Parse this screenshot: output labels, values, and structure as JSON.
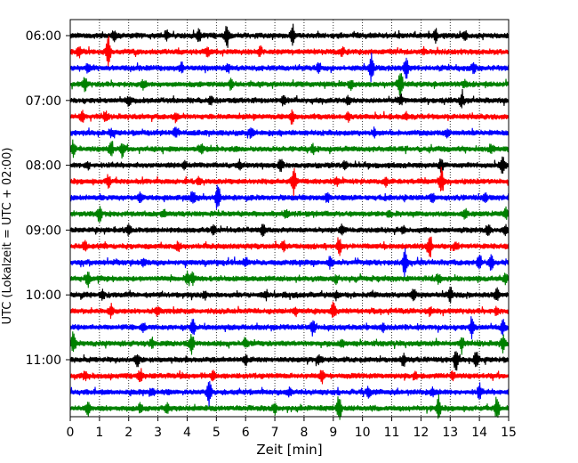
{
  "chart_data": {
    "type": "line",
    "title": "",
    "xlabel": "Zeit  [min]",
    "ylabel": "UTC (Lokalzeit = UTC + 02:00)",
    "xlim": [
      0,
      15
    ],
    "x_ticks": [
      "0",
      "1",
      "2",
      "3",
      "4",
      "5",
      "6",
      "7",
      "8",
      "9",
      "10",
      "11",
      "12",
      "13",
      "14",
      "15"
    ],
    "y_ticks": [
      "06:00",
      "07:00",
      "08:00",
      "09:00",
      "10:00",
      "11:00"
    ],
    "grid": "vertical dotted at each minute",
    "line_interval_minutes": 15,
    "first_line": "06:00",
    "trace_count": 24,
    "colors": [
      "#000000",
      "#ff0000",
      "#0000ff",
      "#008000"
    ],
    "events": [
      [
        [
          5.35,
          1.0
        ],
        [
          7.6,
          0.7
        ],
        [
          3.3,
          0.3
        ],
        [
          12.5,
          0.45
        ],
        [
          4.4,
          0.35
        ],
        [
          13.5,
          0.35
        ],
        [
          1.5,
          0.3
        ]
      ],
      [
        [
          1.3,
          1.0
        ],
        [
          0.3,
          0.35
        ],
        [
          6.5,
          0.3
        ],
        [
          12.1,
          0.2
        ],
        [
          4.7,
          0.25
        ],
        [
          9.3,
          0.25
        ]
      ],
      [
        [
          10.3,
          1.0
        ],
        [
          11.5,
          0.75
        ],
        [
          13.8,
          0.3
        ],
        [
          3.8,
          0.3
        ],
        [
          0.6,
          0.35
        ],
        [
          8.5,
          0.3
        ],
        [
          5.4,
          0.25
        ]
      ],
      [
        [
          11.3,
          1.0
        ],
        [
          0.5,
          0.45
        ],
        [
          5.5,
          0.35
        ],
        [
          9.6,
          0.3
        ],
        [
          13.5,
          0.2
        ],
        [
          2.5,
          0.25
        ]
      ],
      [
        [
          13.4,
          0.45
        ],
        [
          11.3,
          0.35
        ],
        [
          7.3,
          0.3
        ],
        [
          2.0,
          0.3
        ],
        [
          4.8,
          0.25
        ],
        [
          9.5,
          0.25
        ]
      ],
      [
        [
          0.4,
          0.45
        ],
        [
          1.2,
          0.3
        ],
        [
          7.6,
          0.45
        ],
        [
          3.6,
          0.25
        ],
        [
          9.5,
          0.3
        ],
        [
          11.5,
          0.25
        ]
      ],
      [
        [
          3.6,
          0.3
        ],
        [
          6.2,
          0.25
        ],
        [
          10.4,
          0.25
        ],
        [
          12.9,
          0.25
        ],
        [
          1.4,
          0.25
        ]
      ],
      [
        [
          0.1,
          0.5
        ],
        [
          1.4,
          0.6
        ],
        [
          1.8,
          0.45
        ],
        [
          4.5,
          0.25
        ],
        [
          8.3,
          0.25
        ],
        [
          14.4,
          0.3
        ]
      ],
      [
        [
          14.8,
          0.75
        ],
        [
          7.2,
          0.4
        ],
        [
          5.8,
          0.25
        ],
        [
          12.7,
          0.4
        ],
        [
          3.9,
          0.3
        ],
        [
          9.4,
          0.3
        ],
        [
          0.6,
          0.25
        ]
      ],
      [
        [
          7.65,
          0.95
        ],
        [
          1.3,
          0.45
        ],
        [
          12.7,
          0.9
        ],
        [
          10.8,
          0.35
        ],
        [
          4.4,
          0.25
        ],
        [
          9.1,
          0.25
        ]
      ],
      [
        [
          5.05,
          1.0
        ],
        [
          4.2,
          0.55
        ],
        [
          8.8,
          0.3
        ],
        [
          12.4,
          0.3
        ],
        [
          2.4,
          0.25
        ],
        [
          14.2,
          0.3
        ]
      ],
      [
        [
          1.0,
          0.55
        ],
        [
          3.2,
          0.25
        ],
        [
          7.4,
          0.25
        ],
        [
          10.9,
          0.25
        ],
        [
          13.5,
          0.35
        ],
        [
          14.9,
          0.3
        ]
      ],
      [
        [
          6.6,
          0.5
        ],
        [
          14.9,
          0.4
        ],
        [
          14.3,
          0.35
        ],
        [
          2.0,
          0.3
        ],
        [
          9.3,
          0.3
        ],
        [
          11.4,
          0.25
        ],
        [
          4.9,
          0.25
        ]
      ],
      [
        [
          12.3,
          0.85
        ],
        [
          9.2,
          0.6
        ],
        [
          0.5,
          0.3
        ],
        [
          3.7,
          0.25
        ],
        [
          7.3,
          0.25
        ],
        [
          13.2,
          0.25
        ]
      ],
      [
        [
          11.45,
          1.0
        ],
        [
          14.0,
          0.5
        ],
        [
          14.4,
          0.45
        ],
        [
          8.9,
          0.35
        ],
        [
          2.5,
          0.25
        ],
        [
          6.0,
          0.25
        ]
      ],
      [
        [
          0.6,
          0.5
        ],
        [
          4.0,
          0.45
        ],
        [
          4.2,
          0.4
        ],
        [
          12.6,
          0.3
        ],
        [
          9.1,
          0.25
        ],
        [
          14.9,
          0.25
        ]
      ],
      [
        [
          11.75,
          0.45
        ],
        [
          13.0,
          0.5
        ],
        [
          1.1,
          0.3
        ],
        [
          6.7,
          0.25
        ],
        [
          14.6,
          0.4
        ],
        [
          4.6,
          0.25
        ],
        [
          9.1,
          0.25
        ]
      ],
      [
        [
          9.0,
          0.6
        ],
        [
          1.4,
          0.4
        ],
        [
          3.0,
          0.3
        ],
        [
          7.7,
          0.3
        ],
        [
          12.3,
          0.25
        ],
        [
          14.6,
          0.25
        ]
      ],
      [
        [
          4.2,
          0.5
        ],
        [
          8.3,
          0.6
        ],
        [
          13.75,
          0.7
        ],
        [
          14.8,
          0.45
        ],
        [
          2.5,
          0.25
        ],
        [
          10.7,
          0.25
        ]
      ],
      [
        [
          0.1,
          0.75
        ],
        [
          4.15,
          0.7
        ],
        [
          6.0,
          0.3
        ],
        [
          13.4,
          0.55
        ],
        [
          14.8,
          0.55
        ],
        [
          2.8,
          0.3
        ],
        [
          9.3,
          0.25
        ]
      ],
      [
        [
          2.3,
          0.5
        ],
        [
          13.2,
          0.7
        ],
        [
          13.9,
          0.7
        ],
        [
          11.4,
          0.35
        ],
        [
          6.0,
          0.25
        ],
        [
          8.5,
          0.3
        ]
      ],
      [
        [
          2.4,
          0.4
        ],
        [
          8.6,
          0.45
        ],
        [
          4.9,
          0.25
        ],
        [
          11.8,
          0.25
        ],
        [
          13.1,
          0.3
        ],
        [
          0.5,
          0.25
        ]
      ],
      [
        [
          4.75,
          1.0
        ],
        [
          14.0,
          0.5
        ],
        [
          10.2,
          0.3
        ],
        [
          2.8,
          0.25
        ],
        [
          12.4,
          0.25
        ],
        [
          7.5,
          0.25
        ]
      ],
      [
        [
          0.6,
          0.5
        ],
        [
          2.4,
          0.3
        ],
        [
          3.3,
          0.35
        ],
        [
          9.2,
          0.95
        ],
        [
          12.6,
          0.8
        ],
        [
          14.6,
          0.8
        ],
        [
          7.0,
          0.35
        ]
      ]
    ]
  }
}
